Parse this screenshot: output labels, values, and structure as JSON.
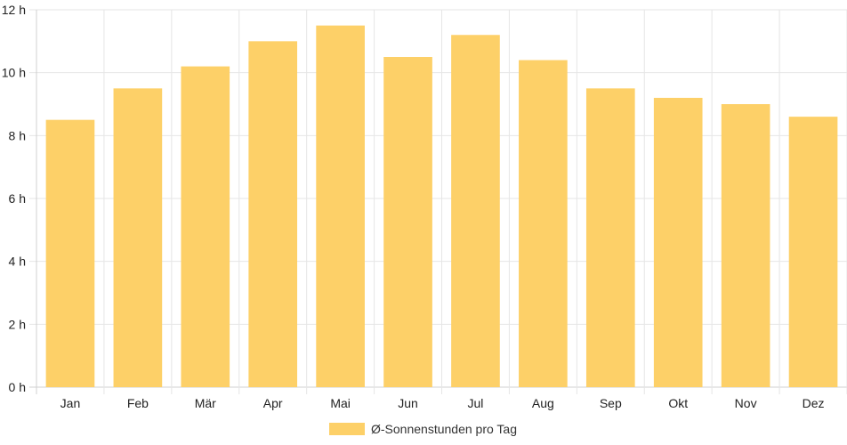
{
  "chart_data": {
    "type": "bar",
    "categories": [
      "Jan",
      "Feb",
      "Mär",
      "Apr",
      "Mai",
      "Jun",
      "Jul",
      "Aug",
      "Sep",
      "Okt",
      "Nov",
      "Dez"
    ],
    "series": [
      {
        "name": "Ø-Sonnenstunden pro Tag",
        "values": [
          8.5,
          9.5,
          10.2,
          11.0,
          11.5,
          10.5,
          11.2,
          10.4,
          9.5,
          9.2,
          9.0,
          8.6
        ],
        "color": "#fdd068"
      }
    ],
    "y_ticks": [
      "0 h",
      "2 h",
      "4 h",
      "6 h",
      "8 h",
      "10 h",
      "12 h"
    ],
    "ylim": [
      0,
      12
    ],
    "grid": true,
    "legend_position": "bottom",
    "colors": {
      "bar": "#fdd068",
      "grid": "#e6e6e6",
      "axis": "#d0d0d0",
      "text": "#222222"
    }
  }
}
